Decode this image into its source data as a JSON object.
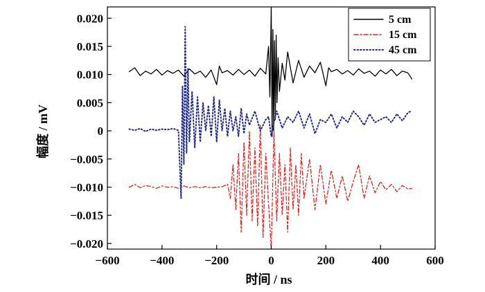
{
  "chart_data": {
    "type": "line",
    "title": "",
    "xlabel": "时间 / ns",
    "ylabel": "幅度 / mV",
    "xlim": [
      -600,
      600
    ],
    "ylim": [
      -0.021,
      0.022
    ],
    "x_ticks": [
      -600,
      -400,
      -200,
      0,
      200,
      400,
      600
    ],
    "x_tick_labels": [
      "−600",
      "−400",
      "−200",
      "0",
      "200",
      "400",
      "600"
    ],
    "y_ticks": [
      -0.02,
      -0.015,
      -0.01,
      -0.005,
      0,
      0.005,
      0.01,
      0.015,
      0.02
    ],
    "y_tick_labels": [
      "−0.020",
      "−0.015",
      "−0.010",
      "−0.005",
      "0",
      "0.005",
      "0.010",
      "0.015",
      "0.020"
    ],
    "grid": false,
    "legend_position": "top-right",
    "series": [
      {
        "name": "5 cm",
        "color": "#000000",
        "style": "solid",
        "x": [
          -520,
          -500,
          -480,
          -460,
          -440,
          -420,
          -400,
          -380,
          -360,
          -340,
          -320,
          -300,
          -280,
          -260,
          -240,
          -220,
          -200,
          -190,
          -180,
          -160,
          -140,
          -120,
          -100,
          -80,
          -60,
          -40,
          -20,
          -10,
          -5,
          0,
          3,
          6,
          9,
          12,
          15,
          18,
          21,
          25,
          30,
          40,
          50,
          60,
          80,
          100,
          120,
          140,
          160,
          180,
          200,
          210,
          220,
          240,
          260,
          280,
          300,
          320,
          340,
          360,
          380,
          400,
          420,
          440,
          460,
          480,
          500,
          515
        ],
        "y": [
          0.0105,
          0.0112,
          0.0098,
          0.0106,
          0.0101,
          0.0109,
          0.0099,
          0.0107,
          0.0102,
          0.0108,
          0.0097,
          0.011,
          0.0101,
          0.0106,
          0.0095,
          0.0108,
          0.0082,
          0.0115,
          0.0103,
          0.0107,
          0.0099,
          0.0109,
          0.01,
          0.0108,
          0.0097,
          0.0111,
          0.0101,
          0.015,
          0.006,
          0.022,
          -0.001,
          0.018,
          0.0,
          0.016,
          0.002,
          0.017,
          0.005,
          0.013,
          0.007,
          0.012,
          0.009,
          0.014,
          0.0085,
          0.0125,
          0.0095,
          0.0115,
          0.0103,
          0.0122,
          0.008,
          0.0112,
          0.0105,
          0.0109,
          0.0101,
          0.0107,
          0.0099,
          0.011,
          0.0102,
          0.0106,
          0.0097,
          0.0108,
          0.0101,
          0.0109,
          0.0098,
          0.0106,
          0.0103,
          0.0092
        ]
      },
      {
        "name": "15 cm",
        "color": "#e8211c",
        "style": "dashed",
        "x": [
          -520,
          -500,
          -480,
          -460,
          -440,
          -420,
          -400,
          -380,
          -360,
          -340,
          -320,
          -300,
          -280,
          -260,
          -240,
          -220,
          -200,
          -180,
          -160,
          -150,
          -140,
          -130,
          -120,
          -110,
          -100,
          -90,
          -80,
          -70,
          -60,
          -50,
          -40,
          -30,
          -20,
          -10,
          0,
          10,
          20,
          30,
          40,
          50,
          60,
          70,
          80,
          90,
          100,
          110,
          120,
          140,
          160,
          180,
          200,
          220,
          240,
          260,
          280,
          300,
          320,
          340,
          360,
          380,
          400,
          420,
          440,
          460,
          480,
          500,
          515
        ],
        "y": [
          -0.01,
          -0.0095,
          -0.0101,
          -0.0097,
          -0.0099,
          -0.0102,
          -0.0098,
          -0.01,
          -0.0099,
          -0.0102,
          -0.0098,
          -0.0101,
          -0.0099,
          -0.0101,
          -0.0099,
          -0.0101,
          -0.01,
          -0.0099,
          -0.0095,
          -0.012,
          -0.006,
          -0.014,
          -0.004,
          -0.018,
          -0.002,
          -0.015,
          0.0,
          -0.016,
          -0.003,
          -0.017,
          0.001,
          -0.019,
          -0.004,
          -0.013,
          -0.021,
          0.0,
          -0.016,
          -0.004,
          -0.015,
          -0.006,
          -0.018,
          -0.003,
          -0.014,
          -0.006,
          -0.015,
          -0.004,
          -0.012,
          -0.005,
          -0.014,
          -0.006,
          -0.013,
          -0.007,
          -0.012,
          -0.008,
          -0.0125,
          -0.009,
          -0.006,
          -0.012,
          -0.008,
          -0.011,
          -0.009,
          -0.0105,
          -0.0095,
          -0.0108,
          -0.0097,
          -0.0103,
          -0.0102
        ]
      },
      {
        "name": "45 cm",
        "color": "#1f2a8c",
        "style": "dotted",
        "x": [
          -520,
          -500,
          -480,
          -460,
          -440,
          -420,
          -400,
          -380,
          -360,
          -340,
          -330,
          -325,
          -320,
          -315,
          -310,
          -305,
          -300,
          -290,
          -280,
          -270,
          -260,
          -250,
          -240,
          -230,
          -220,
          -210,
          -200,
          -190,
          -180,
          -170,
          -160,
          -150,
          -140,
          -130,
          -120,
          -110,
          -100,
          -90,
          -80,
          -60,
          -40,
          -20,
          -10,
          0,
          10,
          20,
          40,
          60,
          80,
          100,
          120,
          140,
          160,
          180,
          200,
          220,
          240,
          260,
          280,
          300,
          320,
          340,
          360,
          380,
          400,
          420,
          440,
          460,
          480,
          500,
          515
        ],
        "y": [
          0.0003,
          0.0001,
          0.0004,
          -0.0001,
          0.0003,
          0.0001,
          0.0003,
          0.0002,
          0.0004,
          0.0001,
          -0.012,
          0.008,
          -0.006,
          0.0185,
          -0.004,
          0.011,
          -0.002,
          0.007,
          -0.003,
          0.006,
          -0.002,
          0.005,
          0.0,
          0.0045,
          -0.001,
          0.006,
          -0.002,
          0.0055,
          0.0,
          0.004,
          -0.001,
          0.0035,
          0.0,
          0.0025,
          -0.001,
          0.004,
          -0.0005,
          0.003,
          0.001,
          0.0035,
          0.0,
          0.002,
          0.0025,
          -0.001,
          0.0015,
          0.0035,
          0.0005,
          0.0025,
          0.0015,
          0.0035,
          0.0005,
          0.003,
          -0.0005,
          0.002,
          0.0015,
          0.003,
          0.0005,
          0.0025,
          0.0015,
          0.0035,
          0.0025,
          0.001,
          0.003,
          0.0015,
          0.002,
          0.0025,
          0.0015,
          0.003,
          0.0018,
          0.0032,
          0.0036
        ]
      }
    ]
  }
}
